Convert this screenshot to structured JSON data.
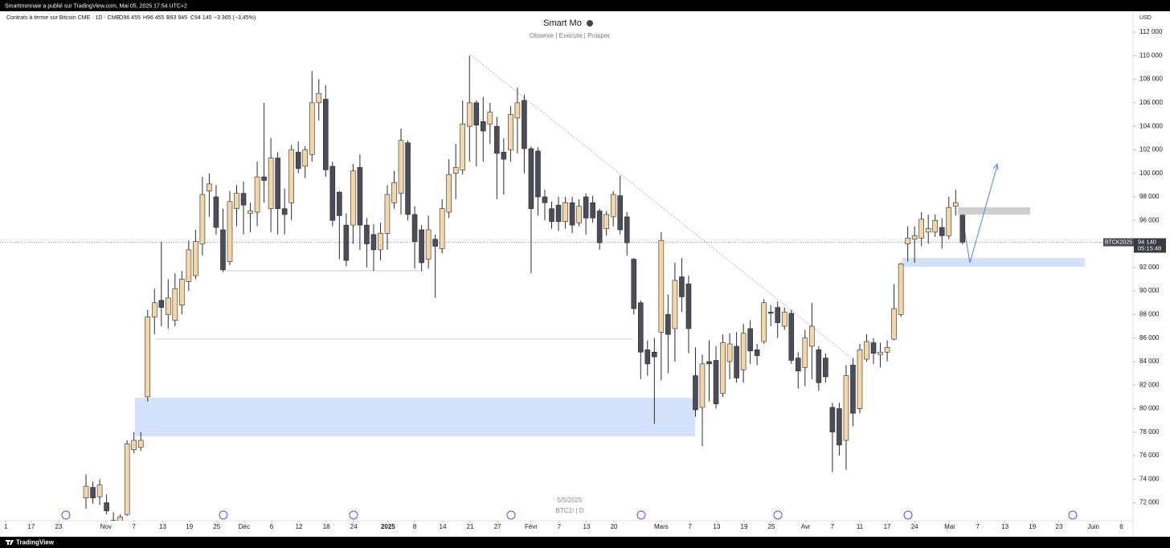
{
  "top_bar": "Smartmonnaie a publié sur TradingView.com, Mai 05, 2025 17:54 UTC+2",
  "footer": {
    "brand": "TradingView"
  },
  "chart_data": {
    "type": "candlestick",
    "title": "Smart Mo",
    "subtitle": "Observe |  Execute |  Prosper",
    "header": {
      "instrument": "Contrats à terme sur Bitcoin CME · 1D · CME",
      "ohlc": [
        "O96 455",
        "H96 455",
        "B93 945",
        "C94 140"
      ],
      "change": "−3 365 (−3,45%)"
    },
    "currency": "USD",
    "watermark": [
      "5/5/2025",
      "BTC1! | D"
    ],
    "up_color": "#f5d7a6",
    "down_color": "#4d4d57",
    "wick_color": "#2b2b33",
    "last_price": {
      "symbol": "BTCK2025",
      "value": 94140,
      "label": "94 140",
      "countdown": "05:15:48",
      "color": "#8a8ed8"
    },
    "categories": [
      null,
      null,
      null,
      null,
      null,
      null,
      null,
      null,
      null,
      null,
      null,
      null,
      null,
      null,
      null,
      null,
      null,
      null,
      null,
      null,
      null,
      null,
      null,
      null,
      null,
      null,
      null,
      null,
      null,
      null,
      null,
      null,
      null,
      null,
      null,
      null,
      null,
      null,
      null,
      null,
      null,
      null,
      null,
      null,
      null,
      null,
      null,
      null,
      null,
      null,
      null,
      null,
      null,
      null,
      null,
      null,
      null,
      null,
      null,
      null,
      null,
      null,
      null,
      null,
      null,
      null,
      null,
      null,
      null,
      null,
      null,
      null,
      null,
      null,
      null,
      null,
      null,
      null,
      null,
      null,
      null,
      null,
      null,
      null,
      null,
      null,
      null,
      null,
      null,
      null,
      null,
      null,
      null,
      null,
      null,
      null,
      null,
      null,
      null,
      null,
      null,
      null,
      null,
      null,
      null,
      null,
      null,
      null,
      null,
      null,
      null,
      null,
      null,
      null,
      null,
      null,
      null,
      null,
      null,
      null,
      null,
      null,
      null,
      null,
      null,
      null,
      null,
      null,
      null
    ],
    "open": [
      72400,
      73300,
      72500,
      72000,
      70500,
      69500,
      71000,
      76500,
      76700,
      81000,
      87800,
      89200,
      88000,
      87500,
      88800,
      90800,
      91300,
      94000,
      98500,
      98000,
      95200,
      92500,
      97000,
      98300,
      96600,
      96700,
      99700,
      97000,
      101300,
      97000,
      97500,
      101800,
      100600,
      101600,
      106000,
      106300,
      100600,
      98400,
      95600,
      95600,
      100500,
      95600,
      94800,
      93500,
      94900,
      97500,
      98300,
      102600,
      96500,
      95200,
      92700,
      94400,
      93600,
      96700,
      100000,
      100300,
      104000,
      106000,
      104400,
      104200,
      104000,
      101800,
      102000,
      104700,
      106200,
      102100,
      101900,
      98000,
      97000,
      97300,
      95900,
      97500,
      95800,
      98000,
      97500,
      96800,
      95300,
      96300,
      98100,
      96300,
      92700,
      89000,
      85000,
      84800,
      86500,
      88000,
      86800,
      91200,
      90600,
      82800,
      80100,
      84000,
      84100,
      81300,
      84000,
      85300,
      83300,
      86800,
      85000,
      85700,
      88200,
      88600,
      87000,
      88100,
      84300,
      83500,
      85300,
      85000,
      84300,
      80100,
      80000,
      77300,
      83700,
      80000,
      84200,
      85600,
      84600,
      84800,
      85900,
      88000,
      94000,
      94400,
      94500,
      95000,
      95000,
      95400,
      94700,
      97200,
      96455
    ],
    "high": [
      74400,
      73800,
      74000,
      72700,
      71200,
      71000,
      77300,
      78000,
      78000,
      88400,
      90200,
      94200,
      91000,
      91500,
      91700,
      94300,
      95200,
      99700,
      100000,
      99000,
      97000,
      98500,
      99000,
      99300,
      97500,
      101000,
      106000,
      103000,
      101800,
      98700,
      102400,
      102700,
      102300,
      108700,
      108000,
      107500,
      101000,
      98500,
      96600,
      100800,
      101600,
      96200,
      95700,
      95800,
      99000,
      100200,
      103800,
      102800,
      97200,
      95600,
      96400,
      94800,
      97800,
      101200,
      102500,
      106200,
      110000,
      106200,
      106500,
      106000,
      104800,
      103000,
      105700,
      107300,
      106700,
      102300,
      102200,
      98600,
      97600,
      98000,
      98000,
      98000,
      97800,
      98300,
      98100,
      97000,
      96800,
      98500,
      99800,
      96700,
      92800,
      89200,
      85800,
      86000,
      95000,
      89700,
      92400,
      92800,
      91300,
      85200,
      84600,
      85800,
      85300,
      86300,
      86400,
      86500,
      87200,
      87500,
      85500,
      89300,
      88800,
      89100,
      88600,
      88400,
      84800,
      86700,
      89000,
      85300,
      84700,
      80500,
      80500,
      83700,
      84300,
      85500,
      86300,
      86000,
      85600,
      85800,
      90600,
      92400,
      95500,
      95500,
      96700,
      96500,
      96500,
      96200,
      98000,
      98600,
      96455
    ],
    "low": [
      71500,
      71900,
      71800,
      71000,
      69000,
      69000,
      70900,
      76200,
      76400,
      80600,
      86300,
      87000,
      86800,
      87000,
      88000,
      90000,
      91000,
      93000,
      96300,
      94800,
      91600,
      92200,
      95500,
      94800,
      95000,
      95500,
      97500,
      95000,
      94800,
      94800,
      96000,
      100000,
      99600,
      101000,
      104500,
      99700,
      95500,
      92700,
      92100,
      94000,
      93500,
      92000,
      91700,
      92600,
      93500,
      97000,
      96500,
      96000,
      91900,
      91700,
      91900,
      89400,
      93200,
      96200,
      97800,
      99900,
      101000,
      100600,
      101000,
      102500,
      97800,
      98200,
      101000,
      101700,
      100000,
      91500,
      96400,
      96000,
      95300,
      95100,
      95300,
      94900,
      95500,
      94800,
      95800,
      93500,
      94700,
      95500,
      94800,
      93000,
      88000,
      82500,
      82800,
      78700,
      82400,
      83000,
      84000,
      88200,
      84700,
      79300,
      76800,
      80600,
      80000,
      81000,
      82500,
      82200,
      82200,
      83800,
      83700,
      85500,
      87000,
      86000,
      86700,
      83800,
      81700,
      81900,
      82500,
      81500,
      82200,
      74600,
      76000,
      74800,
      78500,
      79600,
      84000,
      83800,
      83500,
      84000,
      85800,
      87800,
      92500,
      92400,
      93800,
      94000,
      94600,
      93600,
      94400,
      96400,
      93945
    ],
    "close": [
      73400,
      72400,
      73500,
      71300,
      69500,
      70800,
      77000,
      77300,
      77300,
      87800,
      89000,
      88600,
      89400,
      90200,
      91000,
      93500,
      94200,
      98200,
      99100,
      95400,
      91800,
      97600,
      98300,
      97300,
      96800,
      99700,
      99400,
      101300,
      97000,
      96500,
      102000,
      100400,
      102000,
      106000,
      106800,
      100300,
      96000,
      96400,
      92600,
      100200,
      95600,
      94000,
      93500,
      94900,
      98200,
      99200,
      102800,
      96500,
      94200,
      92400,
      95200,
      93800,
      97000,
      99900,
      100500,
      104200,
      106000,
      104100,
      103600,
      105200,
      101700,
      101200,
      105000,
      106000,
      102100,
      97000,
      98000,
      97500,
      95900,
      95900,
      97500,
      95600,
      97200,
      96200,
      96200,
      94100,
      96500,
      98200,
      95200,
      94100,
      88500,
      84800,
      83800,
      84400,
      94300,
      86300,
      90900,
      89500,
      86800,
      79900,
      83800,
      83800,
      80400,
      85600,
      85500,
      82600,
      86400,
      84900,
      84500,
      89000,
      88100,
      87300,
      88200,
      84100,
      83200,
      86000,
      87000,
      82200,
      82700,
      78000,
      76900,
      82800,
      79600,
      85000,
      85700,
      84700,
      84800,
      85200,
      88500,
      92300,
      94500,
      94700,
      96100,
      95300,
      96000,
      94700,
      97100,
      97500,
      94140
    ],
    "xlim": [
      -12.56,
      152.9
    ],
    "ylim": [
      70470,
      113780
    ],
    "xticks": [
      {
        "value": -11.7,
        "label": "1"
      },
      {
        "value": -8.0,
        "label": "17"
      },
      {
        "value": -4.0,
        "label": "23"
      },
      {
        "value": 2.9,
        "label": "Nov"
      },
      {
        "value": 7.0,
        "label": "7"
      },
      {
        "value": 11.2,
        "label": "13"
      },
      {
        "value": 15.1,
        "label": "19"
      },
      {
        "value": 19.1,
        "label": "25"
      },
      {
        "value": 23.1,
        "label": "Déc"
      },
      {
        "value": 27.1,
        "label": "6"
      },
      {
        "value": 31.1,
        "label": "12"
      },
      {
        "value": 35.1,
        "label": "18"
      },
      {
        "value": 39.1,
        "label": "24"
      },
      {
        "value": 44.1,
        "label": "2025"
      },
      {
        "value": 48.0,
        "label": "8"
      },
      {
        "value": 52.1,
        "label": "14"
      },
      {
        "value": 56.1,
        "label": "21"
      },
      {
        "value": 60.1,
        "label": "27"
      },
      {
        "value": 65.0,
        "label": "Févr"
      },
      {
        "value": 69.1,
        "label": "7"
      },
      {
        "value": 73.1,
        "label": "13"
      },
      {
        "value": 77.1,
        "label": "20"
      },
      {
        "value": 84.0,
        "label": "Mars"
      },
      {
        "value": 88.2,
        "label": "7"
      },
      {
        "value": 92.1,
        "label": "13"
      },
      {
        "value": 96.1,
        "label": "19"
      },
      {
        "value": 100.1,
        "label": "25"
      },
      {
        "value": 105.1,
        "label": "Avr"
      },
      {
        "value": 109.0,
        "label": "7"
      },
      {
        "value": 113.0,
        "label": "11"
      },
      {
        "value": 117.0,
        "label": "17"
      },
      {
        "value": 121.0,
        "label": "24"
      },
      {
        "value": 126.1,
        "label": "Mai"
      },
      {
        "value": 130.2,
        "label": "7"
      },
      {
        "value": 134.2,
        "label": "13"
      },
      {
        "value": 138.2,
        "label": "19"
      },
      {
        "value": 142.1,
        "label": "23"
      },
      {
        "value": 147.1,
        "label": "Juin"
      },
      {
        "value": 151.2,
        "label": "6"
      }
    ],
    "yticks": [
      {
        "value": 72000,
        "label": "72 000"
      },
      {
        "value": 74000,
        "label": "74 000"
      },
      {
        "value": 76000,
        "label": "76 000"
      },
      {
        "value": 78000,
        "label": "78 000"
      },
      {
        "value": 80000,
        "label": "80 000"
      },
      {
        "value": 82000,
        "label": "82 000"
      },
      {
        "value": 84000,
        "label": "84 000"
      },
      {
        "value": 86000,
        "label": "86 000"
      },
      {
        "value": 88000,
        "label": "88 000"
      },
      {
        "value": 90000,
        "label": "90 000"
      },
      {
        "value": 92000,
        "label": "92 000"
      },
      {
        "value": 94000,
        "label": "94 000"
      },
      {
        "value": 96000,
        "label": "96 000"
      },
      {
        "value": 98000,
        "label": "98 000"
      },
      {
        "value": 100000,
        "label": "100 000"
      },
      {
        "value": 102000,
        "label": "102 000"
      },
      {
        "value": 104000,
        "label": "104 000"
      },
      {
        "value": 106000,
        "label": "106 000"
      },
      {
        "value": 108000,
        "label": "108 000"
      },
      {
        "value": 110000,
        "label": "110 000"
      },
      {
        "value": 112000,
        "label": "112 000"
      }
    ],
    "grid": false
  }
}
